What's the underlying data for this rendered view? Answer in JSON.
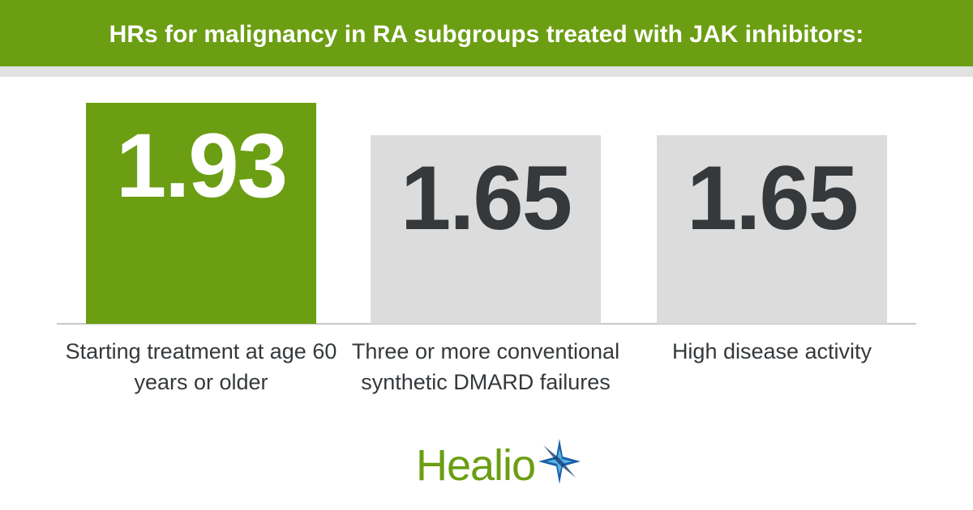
{
  "chart_data": {
    "type": "bar",
    "title": "HRs for malignancy in RA subgroups treated with JAK inhibitors:",
    "categories": [
      "Starting treatment at age 60 years or older",
      "Three or more conventional synthetic DMARD failures",
      "High disease activity"
    ],
    "values": [
      1.93,
      1.65,
      1.65
    ],
    "colors": [
      "#6b9e12",
      "#dcdcdc",
      "#dcdcdc"
    ]
  },
  "logo": "Healio"
}
